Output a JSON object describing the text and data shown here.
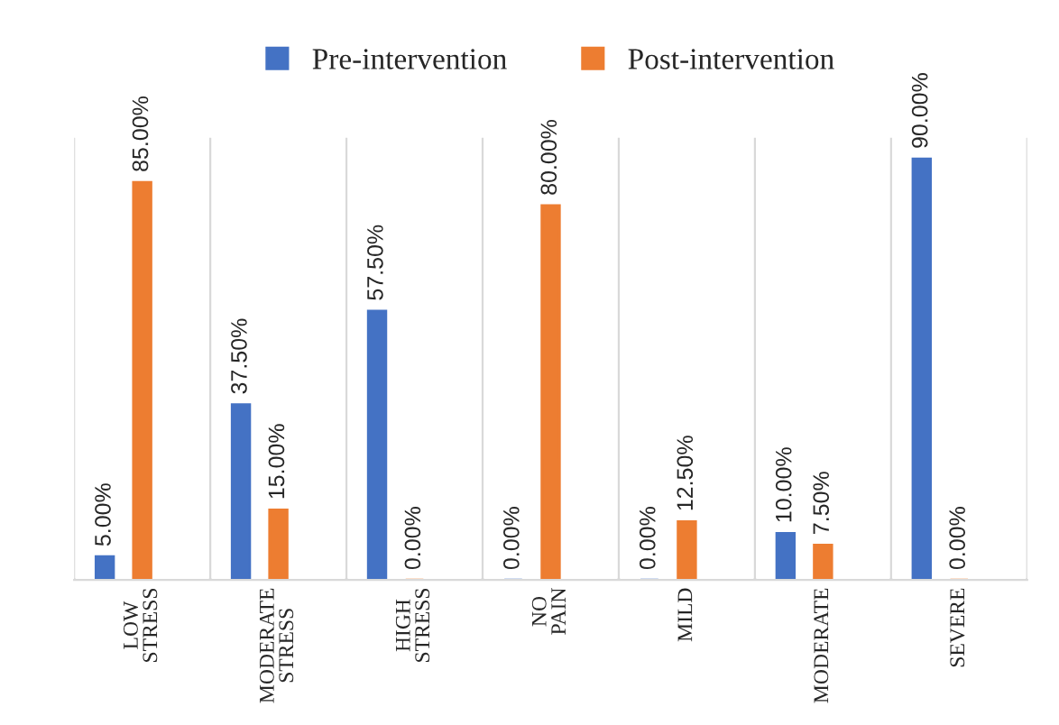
{
  "chart_data": {
    "type": "bar",
    "categories": [
      "LOW STRESS",
      "MODERATE STRESS",
      "HIGH STRESS",
      "NO PAIN",
      "MILD",
      "MODERATE",
      "SEVERE"
    ],
    "series": [
      {
        "name": "Pre-intervention",
        "color": "#4472c4",
        "values": [
          5,
          37.5,
          57.5,
          0,
          0,
          10,
          90
        ],
        "value_labels": [
          "5.00%",
          "37.50%",
          "57.50%",
          "0.00%",
          "0.00%",
          "10.00%",
          "90.00%"
        ]
      },
      {
        "name": "Post-intervention",
        "color": "#ed7d31",
        "values": [
          85,
          15,
          0,
          80,
          12.5,
          7.5,
          0
        ],
        "value_labels": [
          "85.00%",
          "15.00%",
          "0.00%",
          "80.00%",
          "12.50%",
          "7.50%",
          "0.00%"
        ]
      }
    ],
    "grid": "x",
    "legend": "top",
    "tick_labels": "x"
  }
}
